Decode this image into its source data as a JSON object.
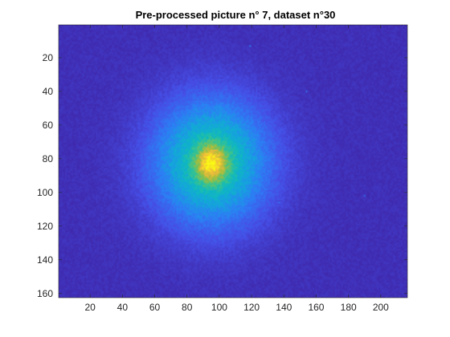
{
  "chart_data": {
    "type": "heatmap",
    "title": "Pre-processed picture n° 7, dataset n°30",
    "xlabel": "",
    "ylabel": "",
    "colormap": "parula",
    "grid": false,
    "legend": "none",
    "xlim": [
      0.5,
      216.5
    ],
    "ylim": [
      0.5,
      162.5
    ],
    "y_direction": "reverse",
    "x_ticks": [
      20,
      40,
      60,
      80,
      100,
      120,
      140,
      160,
      180,
      200
    ],
    "y_ticks": [
      20,
      40,
      60,
      80,
      100,
      120,
      140,
      160
    ],
    "x_tick_labels": [
      "20",
      "40",
      "60",
      "80",
      "100",
      "120",
      "140",
      "160",
      "180",
      "200"
    ],
    "y_tick_labels": [
      "20",
      "40",
      "60",
      "80",
      "100",
      "120",
      "140",
      "160"
    ],
    "data_size": {
      "cols": 216,
      "rows": 162
    },
    "blob": {
      "center": {
        "x": 95,
        "y": 82
      },
      "spread": {
        "x": 24,
        "y": 25
      },
      "core_center": {
        "x": 95,
        "y": 83
      },
      "core_spread": {
        "x": 7,
        "y": 8
      },
      "peak_value": 1.0,
      "background_value": 0.03,
      "noise": 0.12
    },
    "hot_pixels": [
      {
        "x": 119,
        "y": 13,
        "value": 0.25
      },
      {
        "x": 154,
        "y": 40,
        "value": 0.22
      },
      {
        "x": 137,
        "y": 106,
        "value": 0.22
      },
      {
        "x": 190,
        "y": 102,
        "value": 0.2
      }
    ]
  }
}
